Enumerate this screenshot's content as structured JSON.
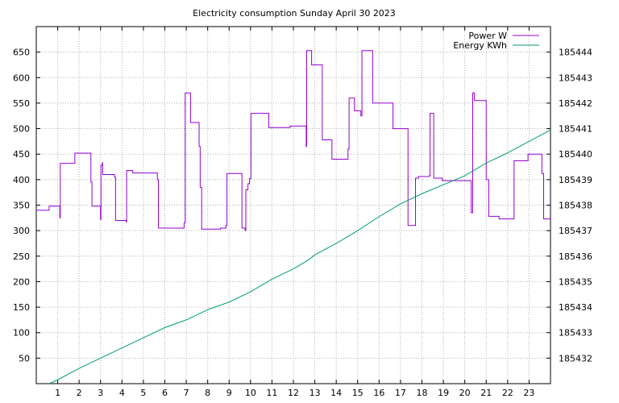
{
  "chart_data": {
    "type": "line",
    "title": "Electricity consumption Sunday April 30 2023",
    "xlabel": "",
    "ylabel": "",
    "y2label": "",
    "x_range": [
      0,
      24
    ],
    "y_range": [
      0,
      700
    ],
    "y2_range": [
      185431,
      185445
    ],
    "x_ticks": [
      1,
      2,
      3,
      4,
      5,
      6,
      7,
      8,
      9,
      10,
      11,
      12,
      13,
      14,
      15,
      16,
      17,
      18,
      19,
      20,
      21,
      22,
      23
    ],
    "y_ticks": [
      50,
      100,
      150,
      200,
      250,
      300,
      350,
      400,
      450,
      500,
      550,
      600,
      650
    ],
    "y2_ticks": [
      185432,
      185433,
      185434,
      185435,
      185436,
      185437,
      185438,
      185439,
      185440,
      185441,
      185442,
      185443,
      185444
    ],
    "grid": true,
    "legend_position": "top-right",
    "series": [
      {
        "name": "Power W",
        "axis": "y",
        "color": "#9400d3",
        "step": true,
        "points": [
          [
            0,
            340
          ],
          [
            0.6,
            340
          ],
          [
            0.6,
            348
          ],
          [
            1.1,
            348
          ],
          [
            1.1,
            325
          ],
          [
            1.12,
            432
          ],
          [
            1.8,
            432
          ],
          [
            1.8,
            452
          ],
          [
            2.55,
            452
          ],
          [
            2.55,
            395
          ],
          [
            2.6,
            348
          ],
          [
            3.0,
            348
          ],
          [
            3.0,
            322
          ],
          [
            3.02,
            428
          ],
          [
            3.08,
            433
          ],
          [
            3.1,
            410
          ],
          [
            3.65,
            410
          ],
          [
            3.65,
            405
          ],
          [
            3.7,
            320
          ],
          [
            4.2,
            320
          ],
          [
            4.2,
            317
          ],
          [
            4.22,
            418
          ],
          [
            4.5,
            418
          ],
          [
            4.5,
            413
          ],
          [
            5.65,
            413
          ],
          [
            5.65,
            400
          ],
          [
            5.7,
            305
          ],
          [
            6.9,
            305
          ],
          [
            6.9,
            315
          ],
          [
            6.95,
            570
          ],
          [
            7.2,
            570
          ],
          [
            7.2,
            512
          ],
          [
            7.6,
            512
          ],
          [
            7.6,
            465
          ],
          [
            7.65,
            385
          ],
          [
            7.7,
            385
          ],
          [
            7.72,
            303
          ],
          [
            8.6,
            303
          ],
          [
            8.6,
            305
          ],
          [
            8.85,
            305
          ],
          [
            8.85,
            310
          ],
          [
            8.9,
            412
          ],
          [
            9.6,
            412
          ],
          [
            9.6,
            305
          ],
          [
            9.75,
            305
          ],
          [
            9.75,
            300
          ],
          [
            9.78,
            380
          ],
          [
            9.85,
            380
          ],
          [
            9.88,
            392
          ],
          [
            9.95,
            402
          ],
          [
            10.0,
            402
          ],
          [
            10.02,
            530
          ],
          [
            10.85,
            530
          ],
          [
            10.85,
            502
          ],
          [
            11.85,
            502
          ],
          [
            11.85,
            505
          ],
          [
            12.6,
            505
          ],
          [
            12.6,
            465
          ],
          [
            12.62,
            653
          ],
          [
            12.85,
            653
          ],
          [
            12.85,
            625
          ],
          [
            13.35,
            625
          ],
          [
            13.35,
            478
          ],
          [
            13.8,
            478
          ],
          [
            13.8,
            440
          ],
          [
            14.55,
            440
          ],
          [
            14.55,
            460
          ],
          [
            14.6,
            560
          ],
          [
            14.85,
            560
          ],
          [
            14.85,
            535
          ],
          [
            15.15,
            535
          ],
          [
            15.15,
            525
          ],
          [
            15.2,
            653
          ],
          [
            15.7,
            653
          ],
          [
            15.7,
            550
          ],
          [
            16.65,
            550
          ],
          [
            16.65,
            500
          ],
          [
            17.35,
            500
          ],
          [
            17.35,
            310
          ],
          [
            17.7,
            310
          ],
          [
            17.7,
            403
          ],
          [
            17.85,
            403
          ],
          [
            17.85,
            406
          ],
          [
            18.35,
            406
          ],
          [
            18.35,
            408
          ],
          [
            18.38,
            530
          ],
          [
            18.55,
            530
          ],
          [
            18.55,
            403
          ],
          [
            18.95,
            403
          ],
          [
            18.95,
            398
          ],
          [
            20.3,
            398
          ],
          [
            20.3,
            335
          ],
          [
            20.35,
            335
          ],
          [
            20.37,
            570
          ],
          [
            20.45,
            570
          ],
          [
            20.45,
            555
          ],
          [
            21.0,
            555
          ],
          [
            21.0,
            400
          ],
          [
            21.1,
            400
          ],
          [
            21.12,
            328
          ],
          [
            21.6,
            328
          ],
          [
            21.6,
            323
          ],
          [
            22.3,
            323
          ],
          [
            22.3,
            437
          ],
          [
            22.95,
            437
          ],
          [
            22.95,
            450
          ],
          [
            23.6,
            450
          ],
          [
            23.6,
            412
          ],
          [
            23.65,
            412
          ],
          [
            23.68,
            323
          ],
          [
            24.0,
            323
          ]
        ]
      },
      {
        "name": "Energy KWh",
        "axis": "y2",
        "color": "#009e73",
        "step": false,
        "points": [
          [
            0.6,
            185431.0
          ],
          [
            1.0,
            185431.15
          ],
          [
            2.0,
            185431.6
          ],
          [
            3.0,
            185432.0
          ],
          [
            4.0,
            185432.4
          ],
          [
            5.0,
            185432.8
          ],
          [
            6.0,
            185433.2
          ],
          [
            7.0,
            185433.5
          ],
          [
            8.0,
            185433.9
          ],
          [
            9.0,
            185434.2
          ],
          [
            10.0,
            185434.6
          ],
          [
            11.0,
            185435.1
          ],
          [
            12.0,
            185435.5
          ],
          [
            12.7,
            185435.85
          ],
          [
            13.0,
            185436.05
          ],
          [
            14.0,
            185436.5
          ],
          [
            15.0,
            185437.0
          ],
          [
            16.0,
            185437.55
          ],
          [
            17.0,
            185438.05
          ],
          [
            18.0,
            185438.45
          ],
          [
            19.0,
            185438.8
          ],
          [
            20.0,
            185439.15
          ],
          [
            21.0,
            185439.65
          ],
          [
            22.0,
            185440.05
          ],
          [
            23.0,
            185440.5
          ],
          [
            24.0,
            185440.95
          ]
        ]
      }
    ]
  }
}
